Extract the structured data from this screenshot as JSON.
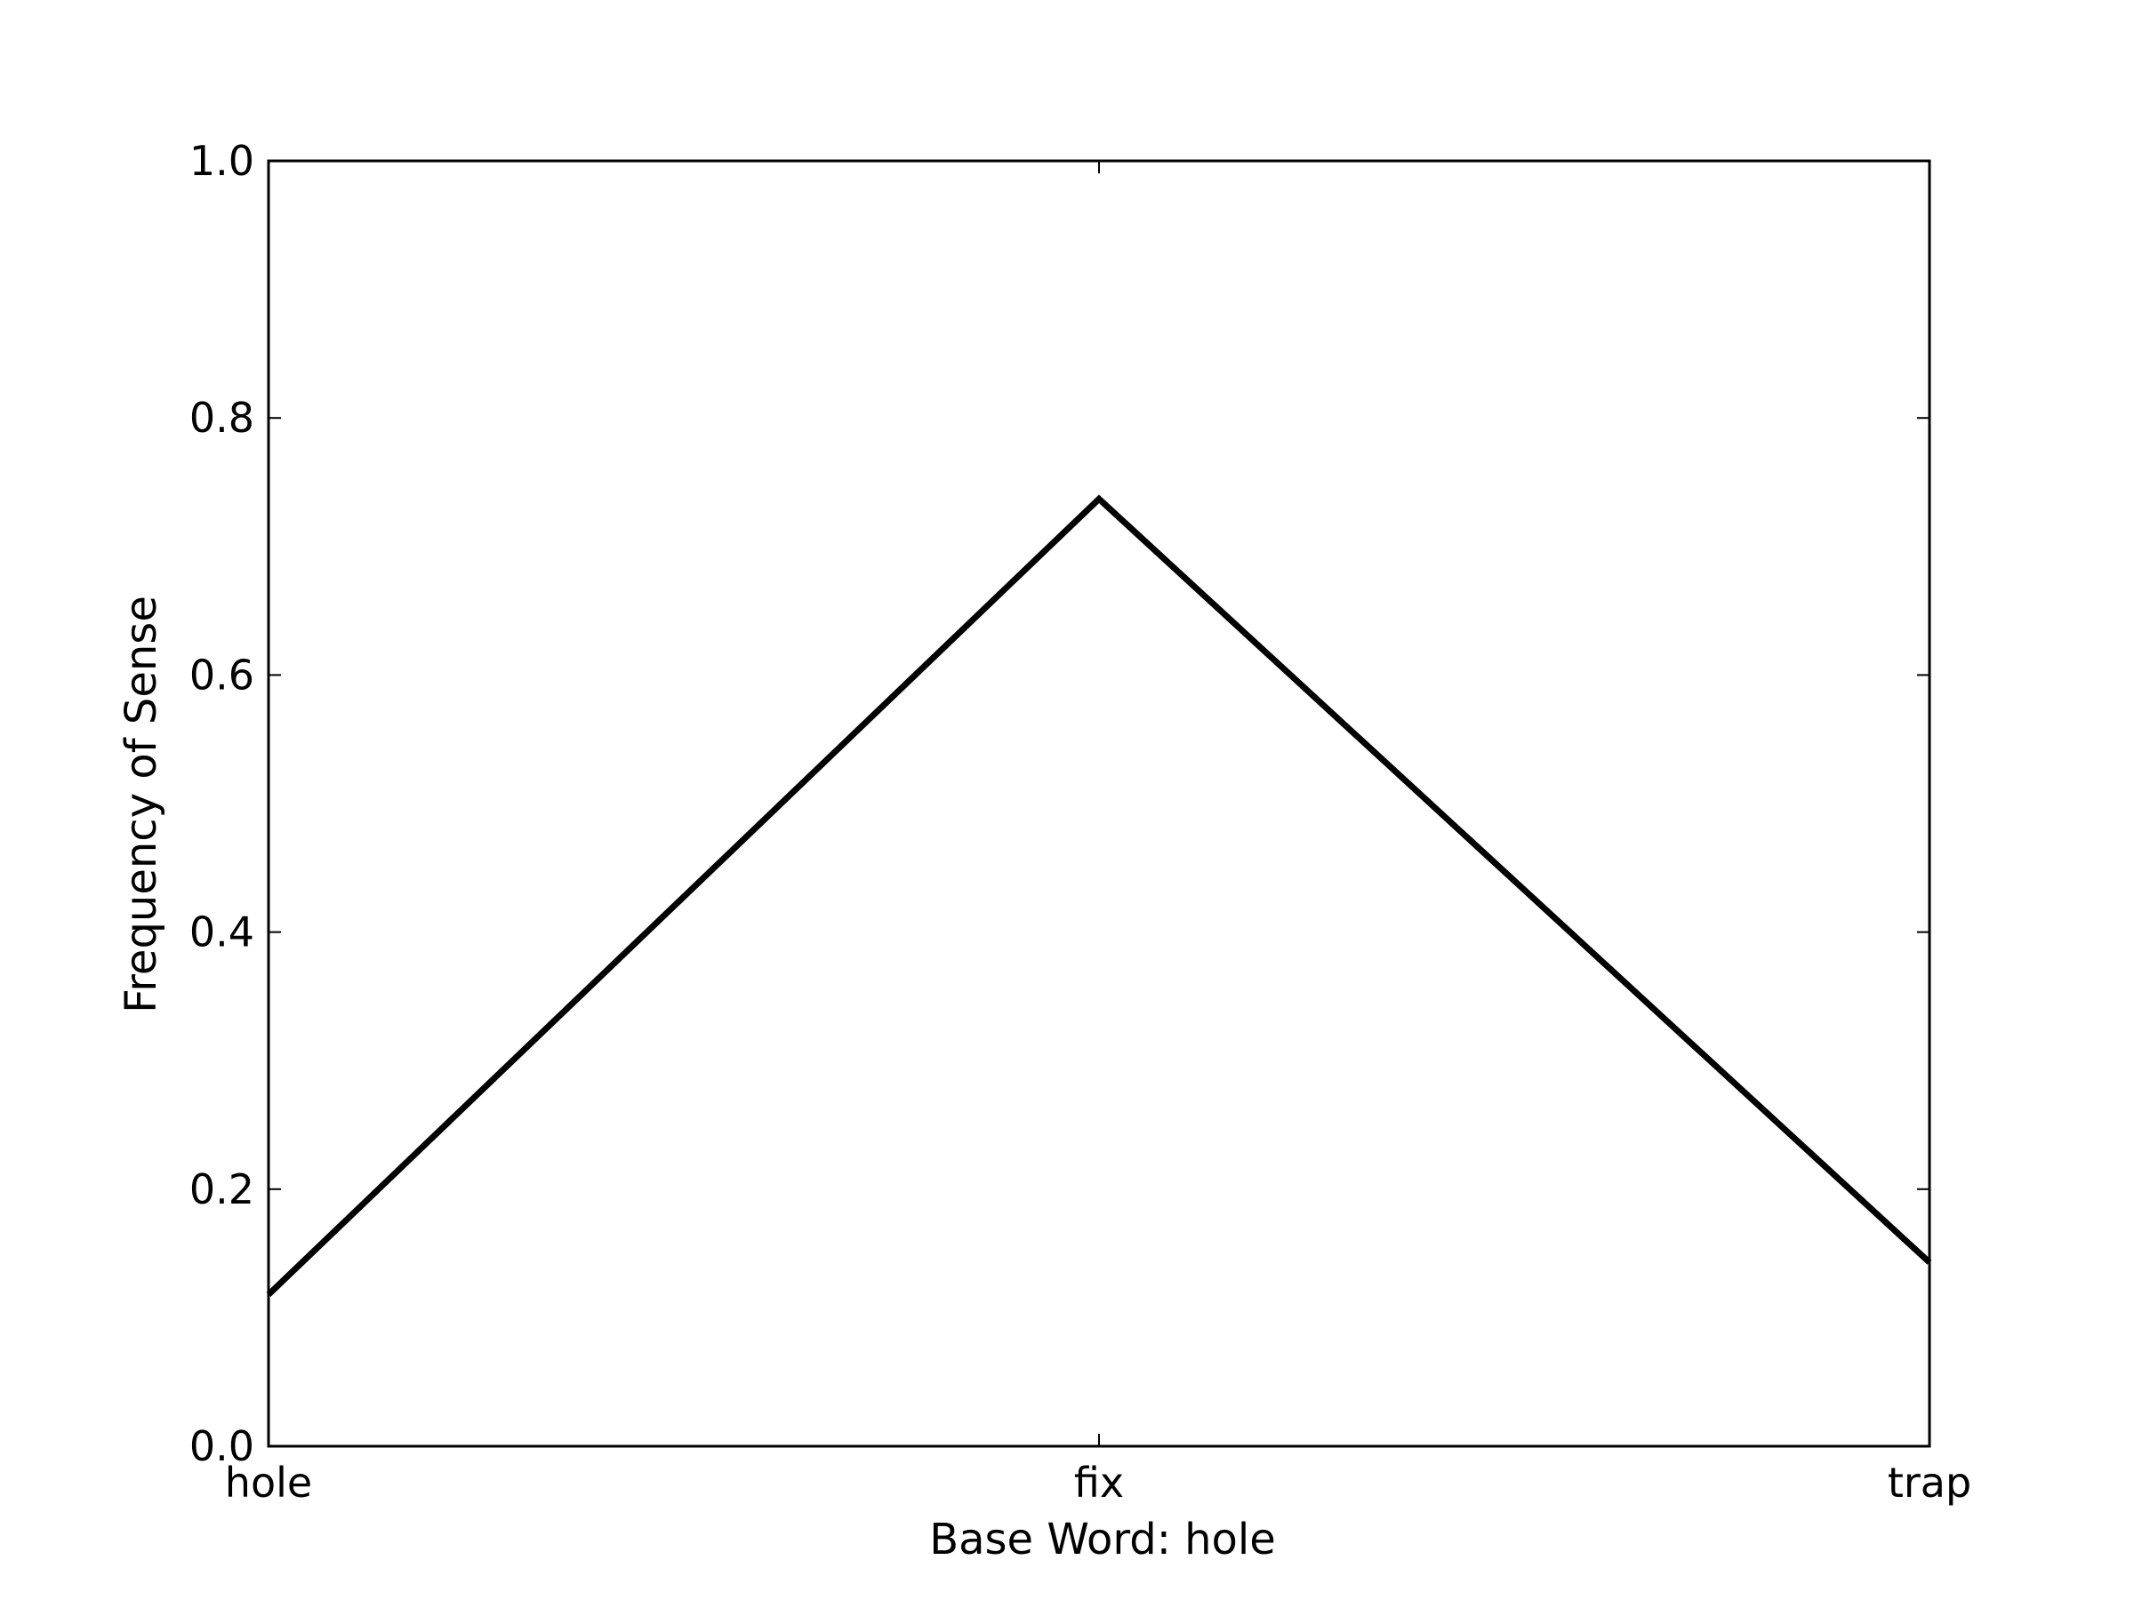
{
  "chart_data": {
    "type": "line",
    "title": "",
    "xlabel": "Base Word: hole",
    "ylabel": "Frequency of Sense",
    "categories": [
      "hole",
      "fix",
      "trap"
    ],
    "series": [
      {
        "name": "Frequency of Sense",
        "values": [
          0.118,
          0.737,
          0.143
        ],
        "color": "#000000"
      }
    ],
    "ylim": [
      0.0,
      1.0
    ],
    "yticks": [
      "0.0",
      "0.2",
      "0.4",
      "0.6",
      "0.8",
      "1.0"
    ],
    "grid": false,
    "legend": "none"
  }
}
